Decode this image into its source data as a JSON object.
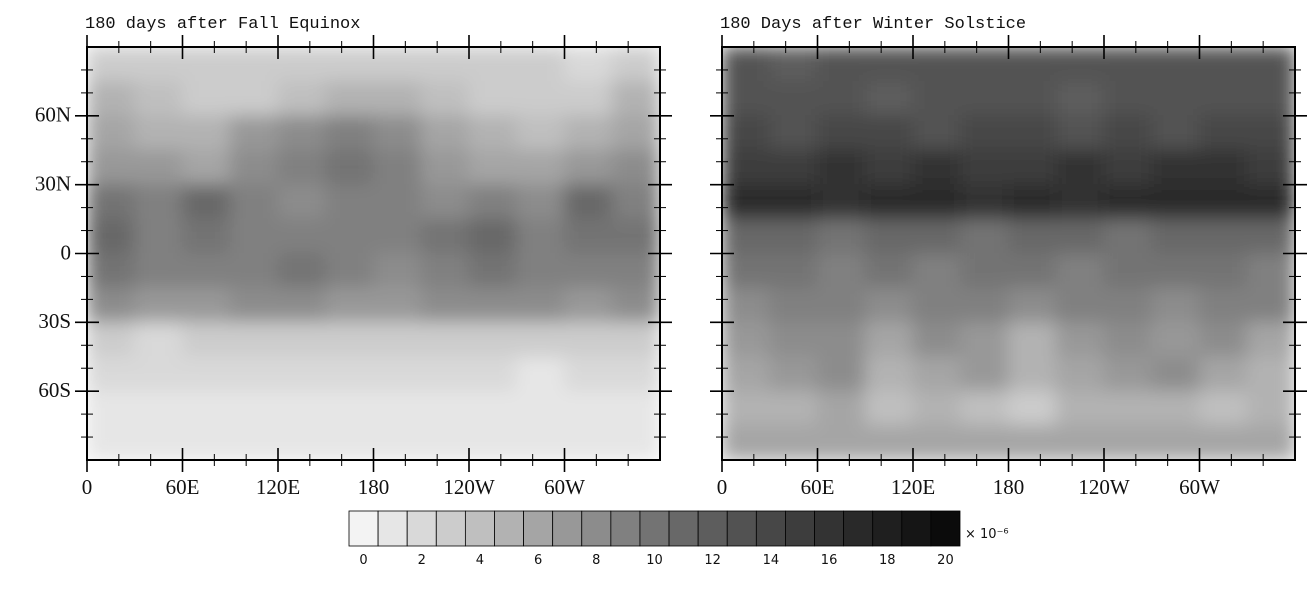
{
  "chart_data": [
    {
      "type": "heatmap",
      "title": "180 days after Fall Equinox",
      "x": [
        15,
        45,
        75,
        105,
        135,
        165,
        195,
        225,
        255,
        285,
        315,
        345
      ],
      "y": [
        82.5,
        67.5,
        52.5,
        37.5,
        22.5,
        7.5,
        -7.5,
        -22.5,
        -37.5,
        -52.5,
        -67.5,
        -82.5
      ],
      "values": [
        [
          3,
          3,
          3,
          3,
          3,
          3,
          3,
          3,
          3,
          3,
          2,
          3
        ],
        [
          5,
          4,
          3,
          3,
          4,
          5,
          5,
          4,
          3,
          3,
          3,
          5
        ],
        [
          6,
          5,
          5,
          7,
          8,
          9,
          8,
          6,
          5,
          4,
          5,
          6
        ],
        [
          7,
          7,
          6,
          8,
          9,
          10,
          9,
          7,
          6,
          6,
          7,
          8
        ],
        [
          10,
          9,
          11,
          9,
          8,
          9,
          9,
          8,
          9,
          8,
          11,
          9
        ],
        [
          11,
          9,
          10,
          9,
          9,
          9,
          9,
          10,
          11,
          9,
          10,
          10
        ],
        [
          10,
          9,
          9,
          9,
          10,
          9,
          8,
          9,
          10,
          9,
          9,
          9
        ],
        [
          8,
          7,
          7,
          8,
          8,
          7,
          7,
          8,
          8,
          8,
          7,
          8
        ],
        [
          3,
          2,
          3,
          3,
          3,
          3,
          3,
          3,
          3,
          3,
          3,
          3
        ],
        [
          2,
          2,
          2,
          2,
          2,
          2,
          2,
          2,
          2,
          1,
          2,
          2
        ],
        [
          1,
          1,
          1,
          1,
          1,
          1,
          1,
          1,
          1,
          1,
          1,
          1
        ],
        [
          1,
          1,
          1,
          1,
          1,
          1,
          1,
          1,
          1,
          1,
          1,
          1
        ]
      ],
      "xlim": [
        0,
        360
      ],
      "ylim": [
        -90,
        90
      ],
      "xticks": [
        {
          "value": 0,
          "label": "0"
        },
        {
          "value": 60,
          "label": "60E"
        },
        {
          "value": 120,
          "label": "120E"
        },
        180,
        {
          "value": 240,
          "label": "120W"
        },
        {
          "value": 300,
          "label": "60W"
        }
      ],
      "yticks": [
        {
          "value": -60,
          "label": "60S"
        },
        {
          "value": -30,
          "label": "30S"
        },
        {
          "value": 0,
          "label": "0"
        },
        {
          "value": 30,
          "label": "30N"
        },
        {
          "value": 60,
          "label": "60N"
        }
      ],
      "show_ytick_labels": true
    },
    {
      "type": "heatmap",
      "title": "180 Days after Winter Solstice",
      "x": [
        15,
        45,
        75,
        105,
        135,
        165,
        195,
        225,
        255,
        285,
        315,
        345
      ],
      "y": [
        82.5,
        67.5,
        52.5,
        37.5,
        22.5,
        7.5,
        -7.5,
        -22.5,
        -37.5,
        -52.5,
        -67.5,
        -82.5
      ],
      "values": [
        [
          13,
          12,
          13,
          13,
          13,
          13,
          13,
          13,
          13,
          13,
          13,
          13
        ],
        [
          13,
          13,
          13,
          12,
          13,
          13,
          13,
          12,
          13,
          13,
          13,
          13
        ],
        [
          14,
          13,
          14,
          14,
          13,
          14,
          14,
          13,
          14,
          13,
          14,
          14
        ],
        [
          15,
          15,
          16,
          15,
          16,
          15,
          15,
          16,
          15,
          16,
          16,
          15
        ],
        [
          17,
          17,
          16,
          17,
          17,
          16,
          17,
          16,
          17,
          17,
          17,
          17
        ],
        [
          11,
          11,
          10,
          11,
          11,
          10,
          11,
          11,
          10,
          11,
          11,
          11
        ],
        [
          10,
          10,
          9,
          10,
          9,
          10,
          10,
          9,
          10,
          10,
          10,
          9
        ],
        [
          8,
          9,
          9,
          8,
          9,
          9,
          8,
          9,
          9,
          8,
          9,
          9
        ],
        [
          7,
          8,
          8,
          6,
          8,
          7,
          5,
          7,
          8,
          7,
          8,
          6
        ],
        [
          6,
          7,
          8,
          5,
          6,
          7,
          5,
          6,
          7,
          8,
          6,
          5
        ],
        [
          5,
          5,
          6,
          4,
          5,
          4,
          3,
          5,
          5,
          5,
          4,
          5
        ],
        [
          6,
          6,
          6,
          6,
          6,
          6,
          6,
          6,
          6,
          6,
          6,
          6
        ]
      ],
      "xlim": [
        0,
        360
      ],
      "ylim": [
        -90,
        90
      ],
      "xticks": [
        {
          "value": 0,
          "label": "0"
        },
        {
          "value": 60,
          "label": "60E"
        },
        {
          "value": 120,
          "label": "120E"
        },
        180,
        {
          "value": 240,
          "label": "120W"
        },
        {
          "value": 300,
          "label": "60W"
        }
      ],
      "yticks": [
        -60,
        -30,
        0,
        30,
        60
      ],
      "show_ytick_labels": false
    }
  ],
  "colorbar": {
    "ticks": [
      0,
      2,
      4,
      6,
      8,
      10,
      12,
      14,
      16,
      18,
      20
    ],
    "label": "× 10⁻⁶",
    "colors": [
      "#f3f3f3",
      "#e6e6e6",
      "#d9d9d9",
      "#cccccc",
      "#bfbfbf",
      "#b2b2b2",
      "#a5a5a5",
      "#989898",
      "#8c8c8c",
      "#808080",
      "#737373",
      "#686868",
      "#5d5d5d",
      "#525252",
      "#474747",
      "#3d3d3d",
      "#333333",
      "#292929",
      "#1f1f1f",
      "#151515",
      "#0b0b0b"
    ]
  }
}
